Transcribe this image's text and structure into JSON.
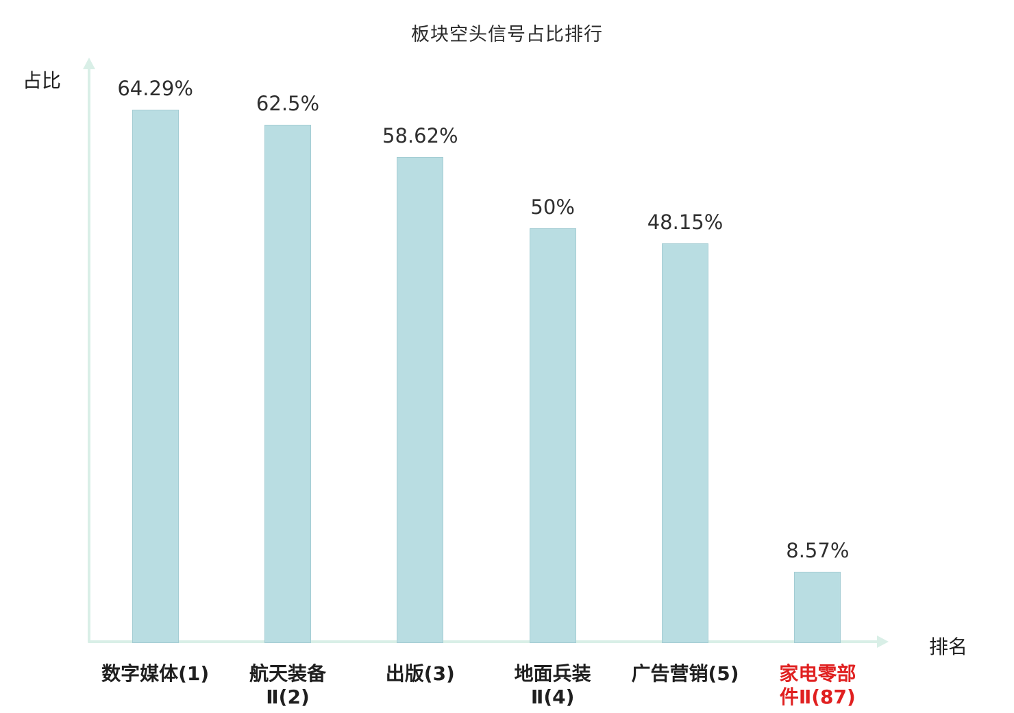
{
  "chart_data": {
    "type": "bar",
    "title": "板块空头信号占比排行",
    "xlabel": "排名",
    "ylabel": "占比",
    "categories": [
      "数字媒体(1)",
      "航天装备Ⅱ(2)",
      "出版(3)",
      "地面兵装Ⅱ(4)",
      "广告营销(5)",
      "家电零部件Ⅱ(87)"
    ],
    "category_lines": [
      [
        "数字媒体(1)"
      ],
      [
        "航天装备",
        "Ⅱ(2)"
      ],
      [
        "出版(3)"
      ],
      [
        "地面兵装",
        "Ⅱ(4)"
      ],
      [
        "广告营销(5)"
      ],
      [
        "家电零部",
        "件Ⅱ(87)"
      ]
    ],
    "values": [
      64.29,
      62.5,
      58.62,
      50,
      48.15,
      8.57
    ],
    "value_labels": [
      "64.29%",
      "62.5%",
      "58.62%",
      "50%",
      "48.15%",
      "8.57%"
    ],
    "category_colors": [
      "#1f1f1f",
      "#1f1f1f",
      "#1f1f1f",
      "#1f1f1f",
      "#1f1f1f",
      "#e02020"
    ],
    "bar_color": "#b9dde2",
    "bar_border_color": "#a3ccd3",
    "axis_color": "#d9efe7",
    "ylim": [
      0,
      70
    ],
    "grid": false,
    "legend": null
  }
}
